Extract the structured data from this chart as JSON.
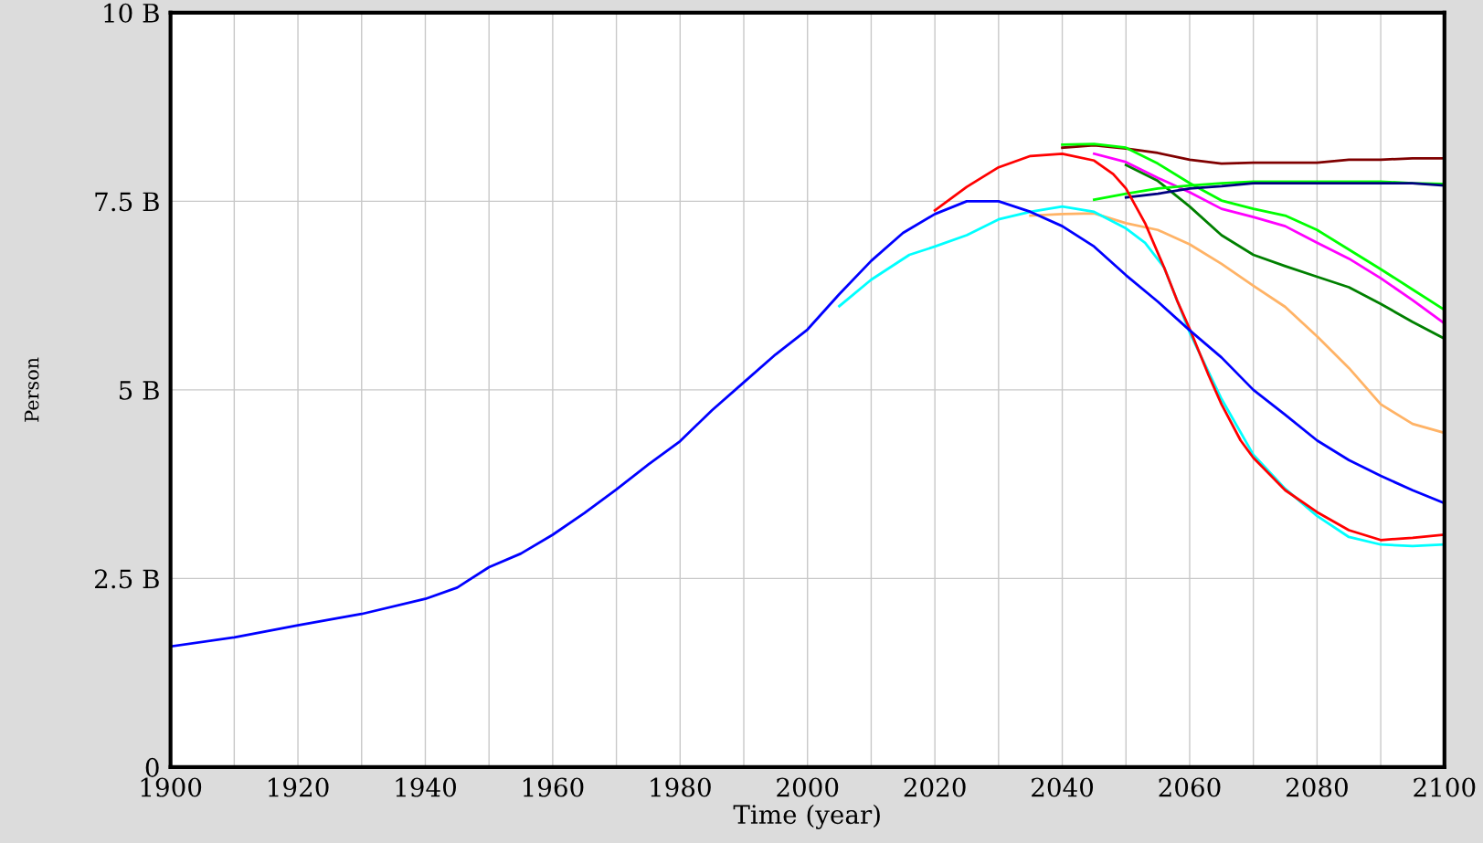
{
  "chart_data": {
    "type": "line",
    "xlabel": "Time (year)",
    "ylabel": "Person",
    "xlim": [
      1900,
      2100
    ],
    "ylim": [
      0,
      10
    ],
    "xticks": [
      1900,
      {
        "value": 1910,
        "label": null
      },
      1920,
      {
        "value": 1930,
        "label": null
      },
      1940,
      {
        "value": 1950,
        "label": null
      },
      1960,
      {
        "value": 1970,
        "label": null
      },
      1980,
      {
        "value": 1990,
        "label": null
      },
      2000,
      {
        "value": 2010,
        "label": null
      },
      2020,
      {
        "value": 2030,
        "label": null
      },
      2040,
      {
        "value": 2050,
        "label": null
      },
      2060,
      {
        "value": 2070,
        "label": null
      },
      2080,
      {
        "value": 2090,
        "label": null
      },
      2100
    ],
    "yticks": [
      0,
      {
        "value": 2.5,
        "label": "2.5 B"
      },
      {
        "value": 5,
        "label": "5 B"
      },
      {
        "value": 7.5,
        "label": "7.5 B"
      },
      {
        "value": 10,
        "label": "10 B"
      }
    ],
    "grid": true,
    "marker": "none",
    "line_style": "solid",
    "series": [
      {
        "color": "#800000",
        "x": [
          2040,
          2045,
          2050,
          2055,
          2060,
          2065,
          2070,
          2080,
          2085,
          2090,
          2095,
          2100
        ],
        "values": [
          8.21,
          8.24,
          8.2,
          8.14,
          8.05,
          8.0,
          8.01,
          8.01,
          8.05,
          8.05,
          8.07,
          8.07
        ]
      },
      {
        "color": "#00ff00",
        "x": [
          2040,
          2045,
          2050,
          2055,
          2060,
          2065,
          2070,
          2075,
          2080,
          2085,
          2090,
          2095,
          2100
        ],
        "values": [
          8.25,
          8.26,
          8.21,
          8.0,
          7.74,
          7.51,
          7.4,
          7.31,
          7.12,
          6.86,
          6.6,
          6.33,
          6.06
        ]
      },
      {
        "color": "#ff00ff",
        "x": [
          2045,
          2050,
          2055,
          2060,
          2065,
          2070,
          2075,
          2080,
          2085,
          2090,
          2095,
          2100
        ],
        "values": [
          8.13,
          8.02,
          7.81,
          7.62,
          7.4,
          7.29,
          7.17,
          6.95,
          6.74,
          6.48,
          6.19,
          5.88
        ]
      },
      {
        "color": "#008000",
        "x": [
          2050,
          2055,
          2060,
          2065,
          2070,
          2075,
          2080,
          2085,
          2090,
          2095,
          2100
        ],
        "values": [
          7.98,
          7.77,
          7.43,
          7.05,
          6.79,
          6.64,
          6.5,
          6.36,
          6.14,
          5.9,
          5.68
        ]
      },
      {
        "color": "#00ff00",
        "x": [
          2045,
          2050,
          2055,
          2060,
          2065,
          2070,
          2090,
          2095,
          2100
        ],
        "values": [
          7.52,
          7.6,
          7.67,
          7.71,
          7.74,
          7.76,
          7.76,
          7.74,
          7.73
        ]
      },
      {
        "color": "#000080",
        "x": [
          2050,
          2055,
          2060,
          2065,
          2070,
          2095,
          2100
        ],
        "values": [
          7.55,
          7.6,
          7.67,
          7.7,
          7.74,
          7.74,
          7.71
        ]
      },
      {
        "color": "#ffb366",
        "x": [
          2035,
          2040,
          2045,
          2050,
          2055,
          2060,
          2065,
          2070,
          2075,
          2080,
          2085,
          2090,
          2095,
          2100
        ],
        "values": [
          7.31,
          7.33,
          7.34,
          7.21,
          7.12,
          6.93,
          6.67,
          6.38,
          6.1,
          5.71,
          5.29,
          4.81,
          4.55,
          4.43
        ]
      },
      {
        "color": "#00ffff",
        "x": [
          2005,
          2010,
          2016,
          2020,
          2025,
          2030,
          2035,
          2040,
          2045,
          2050,
          2053,
          2056,
          2060,
          2065,
          2070,
          2075,
          2080,
          2085,
          2090,
          2095,
          2100
        ],
        "values": [
          6.11,
          6.46,
          6.79,
          6.9,
          7.05,
          7.26,
          7.36,
          7.43,
          7.36,
          7.14,
          6.95,
          6.62,
          5.76,
          4.88,
          4.14,
          3.69,
          3.33,
          3.05,
          2.95,
          2.93,
          2.95
        ]
      },
      {
        "color": "#ff0000",
        "x": [
          2020,
          2025,
          2030,
          2035,
          2040,
          2045,
          2048,
          2050,
          2053,
          2056,
          2058,
          2060,
          2063,
          2065,
          2068,
          2070,
          2075,
          2080,
          2085,
          2090,
          2095,
          2100
        ],
        "values": [
          7.38,
          7.69,
          7.95,
          8.1,
          8.13,
          8.04,
          7.86,
          7.67,
          7.21,
          6.62,
          6.19,
          5.81,
          5.19,
          4.81,
          4.33,
          4.1,
          3.67,
          3.38,
          3.14,
          3.01,
          3.04,
          3.08
        ]
      },
      {
        "color": "#0000ff",
        "x": [
          1900,
          1910,
          1920,
          1930,
          1940,
          1945,
          1950,
          1955,
          1960,
          1965,
          1970,
          1975,
          1980,
          1985,
          1990,
          1995,
          2000,
          2005,
          2010,
          2015,
          2020,
          2025,
          2030,
          2035,
          2040,
          2045,
          2050,
          2055,
          2060,
          2065,
          2070,
          2075,
          2080,
          2085,
          2090,
          2095,
          2100
        ],
        "values": [
          1.6,
          1.72,
          1.88,
          2.03,
          2.23,
          2.38,
          2.65,
          2.83,
          3.08,
          3.37,
          3.68,
          4.01,
          4.32,
          4.73,
          5.1,
          5.47,
          5.8,
          6.27,
          6.71,
          7.08,
          7.33,
          7.5,
          7.5,
          7.36,
          7.17,
          6.9,
          6.52,
          6.17,
          5.79,
          5.43,
          5.0,
          4.67,
          4.33,
          4.07,
          3.86,
          3.67,
          3.5
        ]
      }
    ]
  }
}
